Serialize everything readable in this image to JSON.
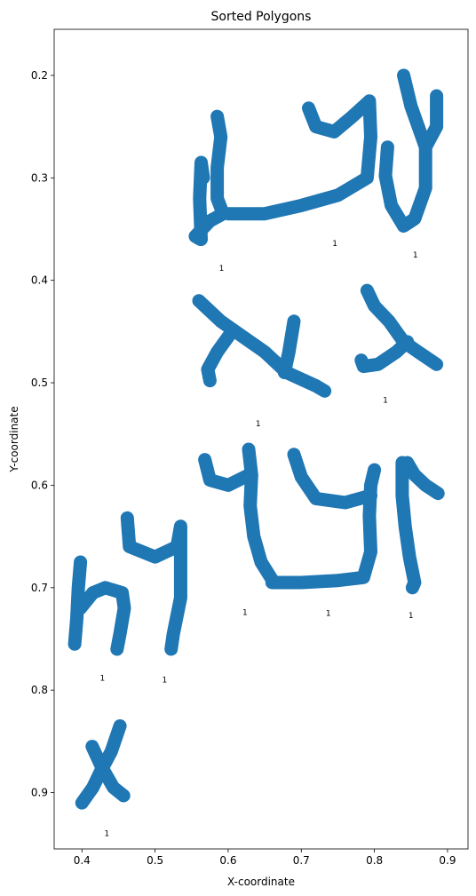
{
  "chart_data": {
    "type": "scatter",
    "title": "Sorted Polygons",
    "xlabel": "X-coordinate",
    "ylabel": "Y-coordinate",
    "xlim": [
      0.362,
      0.928
    ],
    "ylim": [
      0.155,
      0.955
    ],
    "y_inverted": true,
    "x_ticks": [
      0.4,
      0.5,
      0.6,
      0.7,
      0.8,
      0.9
    ],
    "y_ticks": [
      0.2,
      0.3,
      0.4,
      0.5,
      0.6,
      0.7,
      0.8,
      0.9
    ],
    "grid": false,
    "color": "#1f77b4",
    "polygons": [
      {
        "label": "1",
        "label_at": [
          0.591,
          0.388
        ],
        "strokes": [
          [
            [
              0.585,
              0.24
            ],
            [
              0.59,
              0.26
            ],
            [
              0.585,
              0.29
            ],
            [
              0.585,
              0.32
            ],
            [
              0.593,
              0.335
            ],
            [
              0.575,
              0.342
            ],
            [
              0.555,
              0.357
            ],
            [
              0.562,
              0.36
            ]
          ],
          [
            [
              0.563,
              0.36
            ],
            [
              0.561,
              0.32
            ],
            [
              0.563,
              0.285
            ],
            [
              0.566,
              0.3
            ]
          ]
        ]
      },
      {
        "label": "1",
        "label_at": [
          0.746,
          0.364
        ],
        "strokes": [
          [
            [
              0.6,
              0.335
            ],
            [
              0.65,
              0.335
            ],
            [
              0.7,
              0.327
            ],
            [
              0.75,
              0.317
            ],
            [
              0.79,
              0.3
            ],
            [
              0.795,
              0.26
            ],
            [
              0.793,
              0.225
            ],
            [
              0.77,
              0.24
            ],
            [
              0.745,
              0.255
            ],
            [
              0.72,
              0.25
            ],
            [
              0.71,
              0.232
            ]
          ]
        ]
      },
      {
        "label": "1",
        "label_at": [
          0.856,
          0.375
        ],
        "strokes": [
          [
            [
              0.84,
              0.2
            ],
            [
              0.85,
              0.23
            ],
            [
              0.87,
              0.27
            ],
            [
              0.87,
              0.31
            ],
            [
              0.855,
              0.34
            ],
            [
              0.84,
              0.347
            ],
            [
              0.823,
              0.327
            ],
            [
              0.815,
              0.298
            ],
            [
              0.818,
              0.27
            ]
          ],
          [
            [
              0.87,
              0.27
            ],
            [
              0.885,
              0.25
            ],
            [
              0.885,
              0.22
            ]
          ]
        ]
      },
      {
        "label": "1",
        "label_at": [
          0.641,
          0.54
        ],
        "strokes": [
          [
            [
              0.56,
              0.42
            ],
            [
              0.59,
              0.44
            ],
            [
              0.62,
              0.455
            ],
            [
              0.65,
              0.47
            ],
            [
              0.68,
              0.49
            ],
            [
              0.72,
              0.503
            ],
            [
              0.732,
              0.508
            ]
          ],
          [
            [
              0.6,
              0.455
            ],
            [
              0.585,
              0.47
            ],
            [
              0.572,
              0.487
            ],
            [
              0.575,
              0.498
            ]
          ],
          [
            [
              0.69,
              0.44
            ],
            [
              0.683,
              0.47
            ],
            [
              0.677,
              0.49
            ]
          ]
        ]
      },
      {
        "label": "1",
        "label_at": [
          0.815,
          0.517
        ],
        "strokes": [
          [
            [
              0.79,
              0.41
            ],
            [
              0.8,
              0.425
            ],
            [
              0.82,
              0.44
            ],
            [
              0.84,
              0.46
            ],
            [
              0.86,
              0.47
            ],
            [
              0.885,
              0.482
            ]
          ],
          [
            [
              0.845,
              0.46
            ],
            [
              0.83,
              0.47
            ],
            [
              0.805,
              0.482
            ],
            [
              0.785,
              0.484
            ],
            [
              0.782,
              0.478
            ]
          ]
        ]
      },
      {
        "label": "1",
        "label_at": [
          0.623,
          0.724
        ],
        "strokes": [
          [
            [
              0.628,
              0.565
            ],
            [
              0.632,
              0.59
            ],
            [
              0.63,
              0.62
            ],
            [
              0.635,
              0.65
            ],
            [
              0.645,
              0.675
            ],
            [
              0.66,
              0.692
            ]
          ],
          [
            [
              0.628,
              0.59
            ],
            [
              0.6,
              0.6
            ],
            [
              0.575,
              0.595
            ],
            [
              0.568,
              0.575
            ]
          ]
        ]
      },
      {
        "label": "1",
        "label_at": [
          0.737,
          0.725
        ],
        "strokes": [
          [
            [
              0.66,
              0.695
            ],
            [
              0.7,
              0.695
            ],
            [
              0.75,
              0.693
            ],
            [
              0.785,
              0.69
            ],
            [
              0.795,
              0.665
            ],
            [
              0.793,
              0.63
            ],
            [
              0.795,
              0.6
            ],
            [
              0.8,
              0.585
            ]
          ],
          [
            [
              0.795,
              0.61
            ],
            [
              0.76,
              0.617
            ],
            [
              0.72,
              0.613
            ],
            [
              0.7,
              0.592
            ],
            [
              0.69,
              0.57
            ]
          ]
        ]
      },
      {
        "label": "1",
        "label_at": [
          0.85,
          0.727
        ],
        "strokes": [
          [
            [
              0.838,
              0.578
            ],
            [
              0.838,
              0.61
            ],
            [
              0.842,
              0.64
            ],
            [
              0.848,
              0.67
            ],
            [
              0.855,
              0.695
            ],
            [
              0.852,
              0.7
            ]
          ],
          [
            [
              0.845,
              0.578
            ],
            [
              0.855,
              0.59
            ],
            [
              0.87,
              0.6
            ],
            [
              0.887,
              0.608
            ]
          ]
        ]
      },
      {
        "label": "1",
        "label_at": [
          0.428,
          0.788
        ],
        "strokes": [
          [
            [
              0.398,
              0.675
            ],
            [
              0.395,
              0.7
            ],
            [
              0.393,
              0.73
            ],
            [
              0.39,
              0.755
            ]
          ],
          [
            [
              0.398,
              0.72
            ],
            [
              0.415,
              0.705
            ],
            [
              0.432,
              0.7
            ],
            [
              0.455,
              0.705
            ],
            [
              0.458,
              0.72
            ],
            [
              0.452,
              0.745
            ],
            [
              0.448,
              0.76
            ]
          ]
        ]
      },
      {
        "label": "1",
        "label_at": [
          0.513,
          0.79
        ],
        "strokes": [
          [
            [
              0.462,
              0.632
            ],
            [
              0.465,
              0.66
            ],
            [
              0.5,
              0.67
            ],
            [
              0.53,
              0.66
            ],
            [
              0.535,
              0.64
            ],
            [
              0.535,
              0.68
            ],
            [
              0.535,
              0.71
            ],
            [
              0.525,
              0.745
            ],
            [
              0.522,
              0.76
            ]
          ]
        ]
      },
      {
        "label": "1",
        "label_at": [
          0.434,
          0.94
        ],
        "strokes": [
          [
            [
              0.4,
              0.91
            ],
            [
              0.415,
              0.895
            ],
            [
              0.425,
              0.88
            ],
            [
              0.44,
              0.86
            ],
            [
              0.452,
              0.835
            ]
          ],
          [
            [
              0.414,
              0.855
            ],
            [
              0.427,
              0.875
            ],
            [
              0.443,
              0.895
            ],
            [
              0.457,
              0.903
            ]
          ]
        ]
      }
    ]
  }
}
